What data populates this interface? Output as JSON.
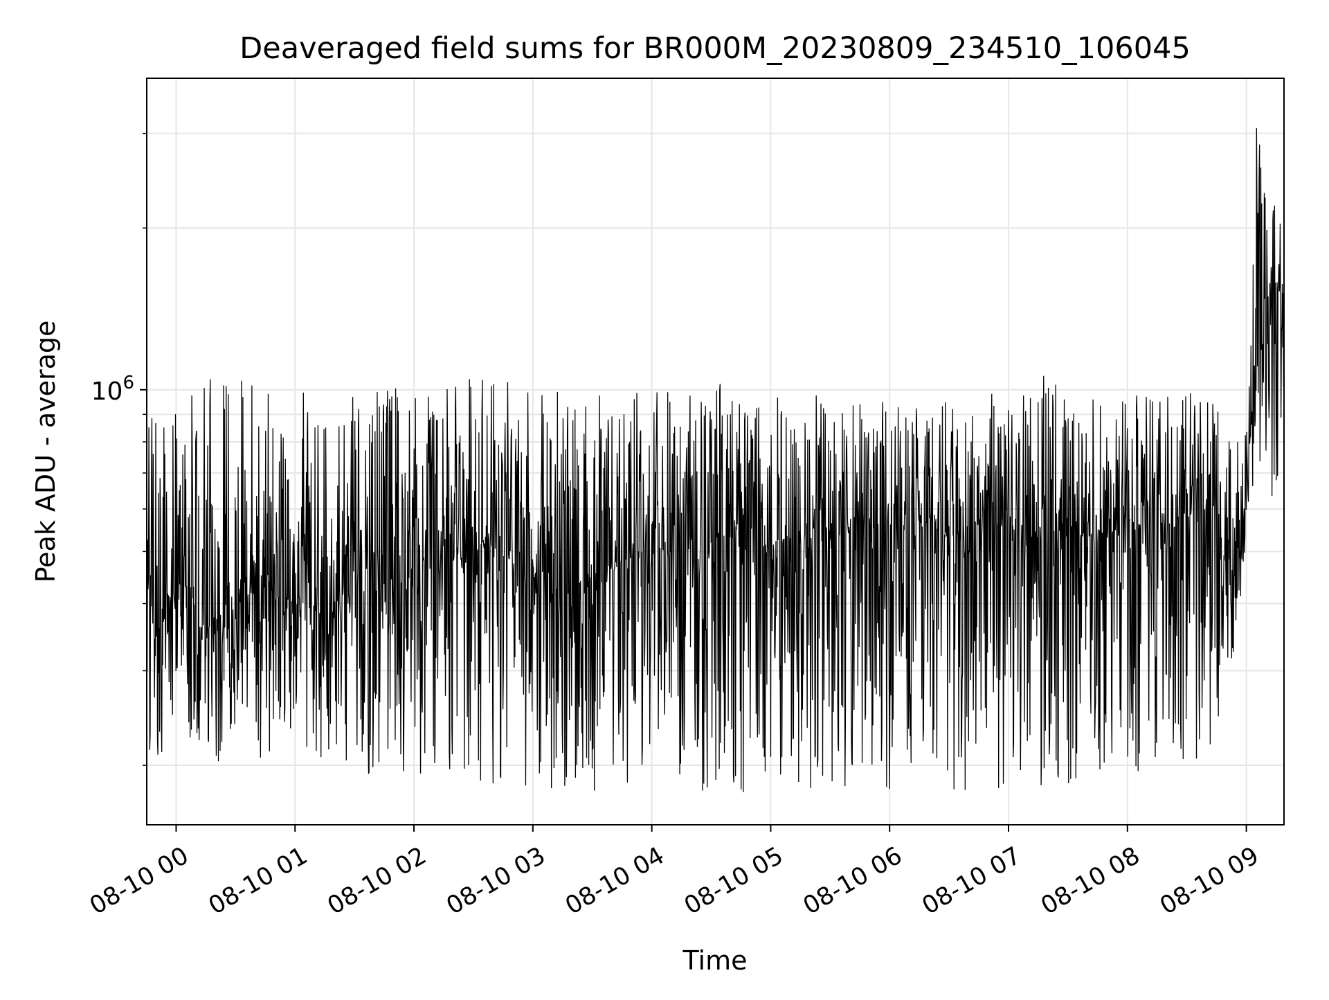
{
  "chart_data": {
    "type": "line",
    "title": "Deaveraged field sums for BR000M_20230809_234510_106045",
    "xlabel": "Time",
    "ylabel": "Peak ADU - average",
    "y_scale": "log",
    "grid": true,
    "legend": "none",
    "colors": {
      "line": "#000000",
      "grid": "#e6e6e6",
      "axes": "#000000",
      "background": "#ffffff"
    },
    "xlim": [
      "2023-08-09T23:45:10",
      "2023-08-10T09:19:00"
    ],
    "ylim": [
      155000,
      3800000
    ],
    "x_ticks": [
      {
        "value": "2023-08-10T00:00",
        "label": "08-10 00"
      },
      {
        "value": "2023-08-10T01:00",
        "label": "08-10 01"
      },
      {
        "value": "2023-08-10T02:00",
        "label": "08-10 02"
      },
      {
        "value": "2023-08-10T03:00",
        "label": "08-10 03"
      },
      {
        "value": "2023-08-10T04:00",
        "label": "08-10 04"
      },
      {
        "value": "2023-08-10T05:00",
        "label": "08-10 05"
      },
      {
        "value": "2023-08-10T06:00",
        "label": "08-10 06"
      },
      {
        "value": "2023-08-10T07:00",
        "label": "08-10 07"
      },
      {
        "value": "2023-08-10T08:00",
        "label": "08-10 08"
      },
      {
        "value": "2023-08-10T09:00",
        "label": "08-10 09"
      }
    ],
    "y_major_ticks": [
      {
        "value": 1000000,
        "base": "10",
        "exponent": "6"
      }
    ],
    "y_minor_ticks": [
      200000,
      300000,
      400000,
      500000,
      600000,
      700000,
      800000,
      900000,
      2000000,
      3000000
    ],
    "series": [
      {
        "x": [
          "2023-08-09T23:45:10",
          "2023-08-09T23:50:00",
          "2023-08-10T00:00:00",
          "2023-08-10T00:15:00",
          "2023-08-10T00:30:00",
          "2023-08-10T00:45:00",
          "2023-08-10T01:00:00",
          "2023-08-10T01:15:00",
          "2023-08-10T01:30:00",
          "2023-08-10T01:45:00",
          "2023-08-10T02:00:00",
          "2023-08-10T02:15:00",
          "2023-08-10T02:30:00",
          "2023-08-10T02:45:00",
          "2023-08-10T03:00:00",
          "2023-08-10T03:15:00",
          "2023-08-10T03:30:00",
          "2023-08-10T03:45:00",
          "2023-08-10T04:00:00",
          "2023-08-10T04:15:00",
          "2023-08-10T04:30:00",
          "2023-08-10T04:45:00",
          "2023-08-10T05:00:00",
          "2023-08-10T05:15:00",
          "2023-08-10T05:30:00",
          "2023-08-10T05:45:00",
          "2023-08-10T06:00:00",
          "2023-08-10T06:15:00",
          "2023-08-10T06:30:00",
          "2023-08-10T06:45:00",
          "2023-08-10T07:00:00",
          "2023-08-10T07:15:00",
          "2023-08-10T07:30:00",
          "2023-08-10T07:45:00",
          "2023-08-10T08:00:00",
          "2023-08-10T08:15:00",
          "2023-08-10T08:30:00",
          "2023-08-10T08:45:00",
          "2023-08-10T08:55:00",
          "2023-08-10T09:00:00",
          "2023-08-10T09:05:00",
          "2023-08-10T09:10:00",
          "2023-08-10T09:15:00",
          "2023-08-10T09:19:00"
        ],
        "y": [
          470000,
          380000,
          410000,
          360000,
          390000,
          430000,
          400000,
          380000,
          440000,
          420000,
          470000,
          500000,
          520000,
          490000,
          480000,
          420000,
          450000,
          470000,
          500000,
          490000,
          520000,
          530000,
          510000,
          540000,
          520000,
          560000,
          550000,
          570000,
          530000,
          550000,
          560000,
          540000,
          550000,
          530000,
          560000,
          560000,
          570000,
          560000,
          420000,
          650000,
          1250000,
          1050000,
          1650000,
          1250000
        ],
        "spread_low": [
          210000,
          200000,
          210000,
          205000,
          200000,
          205000,
          200000,
          195000,
          195000,
          190000,
          195000,
          185000,
          185000,
          180000,
          180000,
          172000,
          175000,
          178000,
          182000,
          180000,
          178000,
          175000,
          172000,
          180000,
          182000,
          178000,
          180000,
          180000,
          176000,
          180000,
          182000,
          178000,
          185000,
          190000,
          195000,
          195000,
          200000,
          205000,
          300000,
          550000,
          600000,
          620000,
          640000,
          660000
        ],
        "spread_high": [
          900000,
          920000,
          950000,
          1080000,
          1050000,
          1100000,
          1020000,
          1000000,
          980000,
          1000000,
          1020000,
          1040000,
          1050000,
          1040000,
          1030000,
          1000000,
          980000,
          1000000,
          1000000,
          1020000,
          1040000,
          1010000,
          1000000,
          1000000,
          1000000,
          1000000,
          980000,
          980000,
          960000,
          980000,
          1000000,
          1150000,
          990000,
          980000,
          1000000,
          1000000,
          990000,
          960000,
          820000,
          900000,
          3500000,
          2200000,
          2400000,
          3000000
        ]
      }
    ]
  }
}
